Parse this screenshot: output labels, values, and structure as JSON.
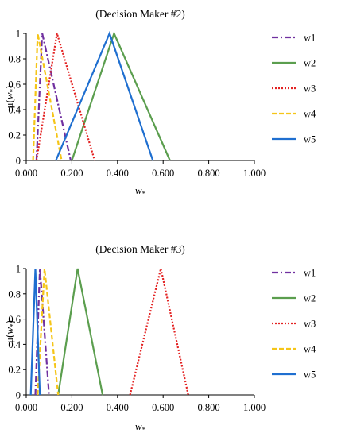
{
  "chart_data": [
    {
      "type": "line",
      "title": "(Decision Maker #2)",
      "xlabel": "w*",
      "ylabel": "μ(w*)",
      "xlim": [
        0,
        1
      ],
      "ylim": [
        0,
        1
      ],
      "x_tick_labels": [
        "0.000",
        "0.200",
        "0.400",
        "0.600",
        "0.800",
        "1.000"
      ],
      "y_tick_labels": [
        "0",
        "0.2",
        "0.4",
        "0.6",
        "0.8",
        "1"
      ],
      "grid": false,
      "legend_position": "right",
      "series": [
        {
          "name": "w1",
          "color": "#7030A0",
          "dash": "dashdot",
          "x": [
            0.045,
            0.07,
            0.195
          ],
          "y": [
            0,
            1,
            0
          ]
        },
        {
          "name": "w2",
          "color": "#5B9E4E",
          "dash": "solid",
          "x": [
            0.2,
            0.385,
            0.63
          ],
          "y": [
            0,
            1,
            0
          ]
        },
        {
          "name": "w3",
          "color": "#E32222",
          "dash": "dotted",
          "x": [
            0.045,
            0.135,
            0.3
          ],
          "y": [
            0,
            1,
            0
          ]
        },
        {
          "name": "w4",
          "color": "#F5C518",
          "dash": "dashed",
          "x": [
            0.03,
            0.05,
            0.155
          ],
          "y": [
            0,
            1,
            0
          ]
        },
        {
          "name": "w5",
          "color": "#1F6FD0",
          "dash": "solid",
          "x": [
            0.13,
            0.365,
            0.555
          ],
          "y": [
            0,
            1,
            0
          ]
        }
      ]
    },
    {
      "type": "line",
      "title": "(Decision Maker #3)",
      "xlabel": "w*",
      "ylabel": "μ(w*)",
      "xlim": [
        0,
        1
      ],
      "ylim": [
        0,
        1
      ],
      "x_tick_labels": [
        "0.000",
        "0.200",
        "0.400",
        "0.600",
        "0.800",
        "1.000"
      ],
      "y_tick_labels": [
        "0",
        "0.2",
        "0.4",
        "0.6",
        "0.8",
        "1"
      ],
      "grid": false,
      "legend_position": "right",
      "series": [
        {
          "name": "w1",
          "color": "#7030A0",
          "dash": "dashdot",
          "x": [
            0.04,
            0.06,
            0.1
          ],
          "y": [
            0,
            1,
            0
          ]
        },
        {
          "name": "w2",
          "color": "#5B9E4E",
          "dash": "solid",
          "x": [
            0.14,
            0.225,
            0.335
          ],
          "y": [
            0,
            1,
            0
          ]
        },
        {
          "name": "w3",
          "color": "#E32222",
          "dash": "dotted",
          "x": [
            0.455,
            0.59,
            0.71
          ],
          "y": [
            0,
            1,
            0
          ]
        },
        {
          "name": "w4",
          "color": "#F5C518",
          "dash": "dashed",
          "x": [
            0.05,
            0.08,
            0.14
          ],
          "y": [
            0,
            1,
            0
          ]
        },
        {
          "name": "w5",
          "color": "#1F6FD0",
          "dash": "solid",
          "x": [
            0.02,
            0.04,
            0.06
          ],
          "y": [
            0,
            1,
            0
          ]
        }
      ]
    }
  ]
}
